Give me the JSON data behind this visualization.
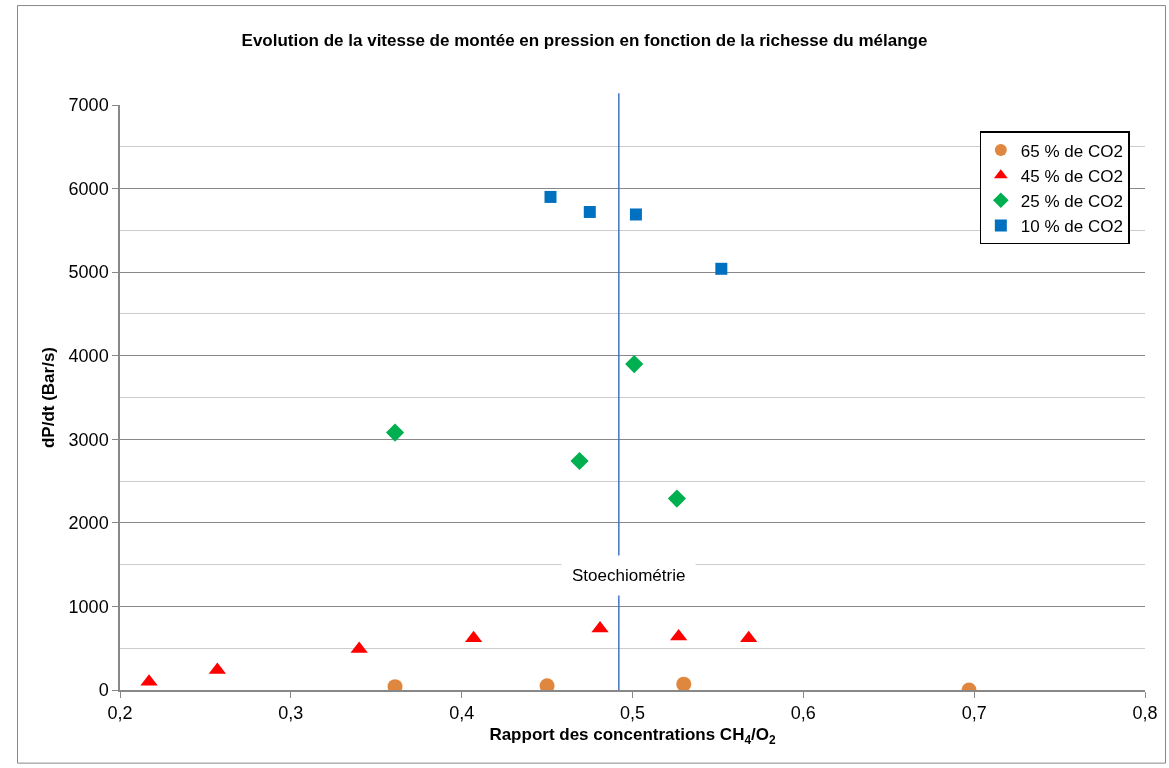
{
  "chart_data": {
    "type": "scatter",
    "title": "Evolution de la vitesse de montée en pression en fonction de la richesse du mélange",
    "xlabel": "Rapport des concentrations CH$_{4}$/O$_{2}$",
    "ylabel": "dP/dt (Bar/s)",
    "series": [
      {
        "name": "65 % de CO2",
        "color": "#e0873f",
        "marker": "circle",
        "x": [
          0.361,
          0.45,
          0.53,
          0.697
        ],
        "values": [
          40,
          50,
          70,
          0
        ]
      },
      {
        "name": "45 % de CO2",
        "color": "#ff0000",
        "marker": "triangle",
        "x": [
          0.217,
          0.257,
          0.34,
          0.407,
          0.481,
          0.527,
          0.568
        ],
        "values": [
          100,
          240,
          490,
          620,
          735,
          640,
          620
        ]
      },
      {
        "name": "25 % de CO2",
        "color": "#00b050",
        "marker": "diamond",
        "x": [
          0.361,
          0.469,
          0.501,
          0.526
        ],
        "values": [
          3080,
          2740,
          3900,
          2290
        ]
      },
      {
        "name": "10 % de CO2",
        "color": "#0070c0",
        "marker": "square",
        "x": [
          0.452,
          0.475,
          0.502,
          0.552
        ],
        "values": [
          5900,
          5720,
          5690,
          5040
        ]
      }
    ],
    "xlim": [
      0.2,
      0.8
    ],
    "xticks": [
      {
        "value": 0.2,
        "label": "0,2"
      },
      {
        "value": 0.3,
        "label": "0,3"
      },
      {
        "value": 0.4,
        "label": "0,4"
      },
      {
        "value": 0.5,
        "label": "0,5"
      },
      {
        "value": 0.6,
        "label": "0,6"
      },
      {
        "value": 0.7,
        "label": "0,7"
      },
      {
        "value": 0.8,
        "label": "0,8"
      }
    ],
    "ylim": [
      0,
      7000
    ],
    "yticks": [
      0,
      1000,
      2000,
      3000,
      4000,
      5000,
      6000,
      7000
    ],
    "ref_lines": [
      {
        "axis": "x",
        "value": 0.492,
        "label": "Stoechiométrie",
        "color": "#4472c4",
        "line_style": "solid"
      }
    ],
    "grid": "y",
    "legend": "top right"
  }
}
